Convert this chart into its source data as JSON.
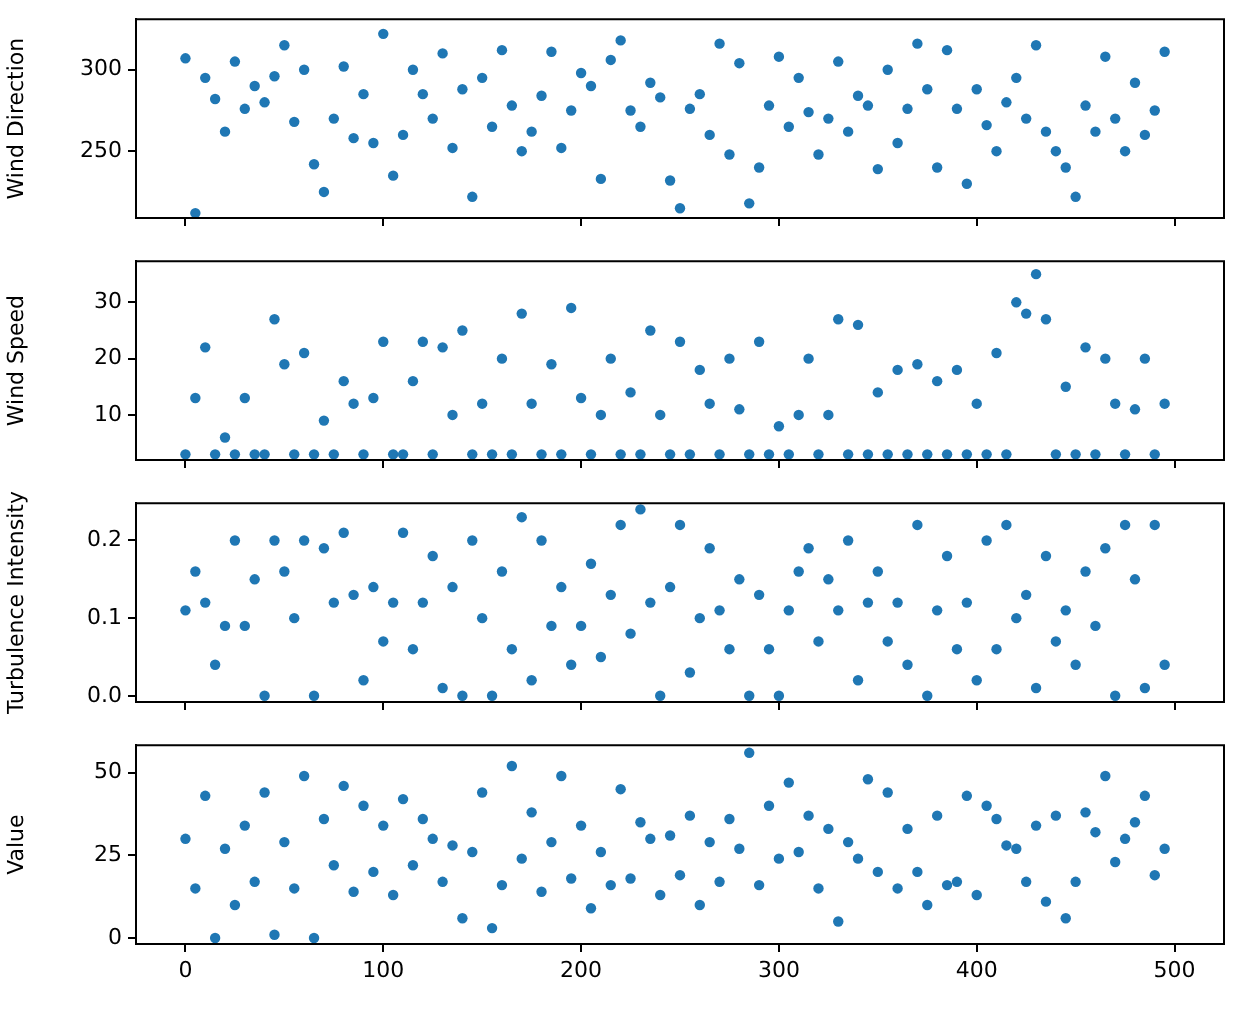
{
  "chart_data": [
    {
      "type": "scatter",
      "ylabel": "Wind Direction",
      "color": "#1f77b4",
      "marker": "circle",
      "grid": false,
      "tick_labels": "y",
      "xlim": [
        -25,
        525
      ],
      "xticks": [
        0,
        100,
        200,
        300,
        400,
        500
      ],
      "ylim": [
        209,
        331
      ],
      "yticks": [
        250,
        300
      ],
      "x": [
        0,
        5,
        10,
        15,
        20,
        25,
        30,
        35,
        40,
        45,
        50,
        55,
        60,
        65,
        70,
        75,
        80,
        85,
        90,
        95,
        100,
        105,
        110,
        115,
        120,
        125,
        130,
        135,
        140,
        145,
        150,
        155,
        160,
        165,
        170,
        175,
        180,
        185,
        190,
        195,
        200,
        205,
        210,
        215,
        220,
        225,
        230,
        235,
        240,
        245,
        250,
        255,
        260,
        265,
        270,
        275,
        280,
        285,
        290,
        295,
        300,
        305,
        310,
        315,
        320,
        325,
        330,
        335,
        340,
        345,
        350,
        355,
        360,
        365,
        370,
        375,
        380,
        385,
        390,
        395,
        400,
        405,
        410,
        415,
        420,
        425,
        430,
        435,
        440,
        445,
        450,
        455,
        460,
        465,
        470,
        475,
        480,
        485,
        490,
        495
      ],
      "values": [
        307,
        212,
        295,
        282,
        262,
        305,
        276,
        290,
        280,
        296,
        315,
        268,
        300,
        242,
        225,
        270,
        302,
        258,
        285,
        255,
        322,
        235,
        260,
        300,
        285,
        270,
        310,
        252,
        288,
        222,
        295,
        265,
        312,
        278,
        250,
        262,
        284,
        311,
        252,
        275,
        298,
        290,
        233,
        306,
        318,
        275,
        265,
        292,
        283,
        232,
        215,
        276,
        285,
        260,
        316,
        248,
        304,
        218,
        240,
        278,
        308,
        265,
        295,
        274,
        248,
        270,
        305,
        262,
        284,
        278,
        239,
        300,
        255,
        276,
        316,
        288,
        240,
        312,
        276,
        230,
        288,
        266,
        250,
        280,
        295,
        270,
        315,
        262,
        250,
        240,
        222,
        278,
        262,
        308,
        270,
        250,
        292,
        260,
        275,
        311
      ]
    },
    {
      "type": "scatter",
      "ylabel": "Wind Speed",
      "color": "#1f77b4",
      "marker": "circle",
      "grid": false,
      "tick_labels": "y",
      "xlim": [
        -25,
        525
      ],
      "xticks": [
        0,
        100,
        200,
        300,
        400,
        500
      ],
      "ylim": [
        2,
        37.3
      ],
      "yticks": [
        10,
        20,
        30
      ],
      "x": [
        0,
        5,
        10,
        15,
        20,
        25,
        30,
        35,
        40,
        45,
        50,
        55,
        60,
        65,
        70,
        75,
        80,
        85,
        90,
        95,
        100,
        105,
        110,
        115,
        120,
        125,
        130,
        135,
        140,
        145,
        150,
        155,
        160,
        165,
        170,
        175,
        180,
        185,
        190,
        195,
        200,
        205,
        210,
        215,
        220,
        225,
        230,
        235,
        240,
        245,
        250,
        255,
        260,
        265,
        270,
        275,
        280,
        285,
        290,
        295,
        300,
        305,
        310,
        315,
        320,
        325,
        330,
        335,
        340,
        345,
        350,
        355,
        360,
        365,
        370,
        375,
        380,
        385,
        390,
        395,
        400,
        405,
        410,
        415,
        420,
        425,
        430,
        435,
        440,
        445,
        450,
        455,
        460,
        465,
        470,
        475,
        480,
        485,
        490,
        495
      ],
      "values": [
        3,
        13,
        22,
        3,
        6,
        3,
        13,
        3,
        3,
        27,
        19,
        3,
        21,
        3,
        9,
        3,
        16,
        12,
        3,
        13,
        23,
        3,
        3,
        16,
        23,
        3,
        22,
        10,
        25,
        3,
        12,
        3,
        20,
        3,
        28,
        12,
        3,
        19,
        3,
        29,
        13,
        3,
        10,
        20,
        3,
        14,
        3,
        25,
        10,
        3,
        23,
        3,
        18,
        12,
        3,
        20,
        11,
        3,
        23,
        3,
        8,
        3,
        10,
        20,
        3,
        10,
        27,
        3,
        26,
        3,
        14,
        3,
        18,
        3,
        19,
        3,
        16,
        3,
        18,
        3,
        12,
        3,
        21,
        3,
        30,
        28,
        35,
        27,
        3,
        15,
        3,
        22,
        3,
        20,
        12,
        3,
        11,
        20,
        3,
        12
      ]
    },
    {
      "type": "scatter",
      "ylabel": "Turbulence Intensity",
      "color": "#1f77b4",
      "marker": "circle",
      "grid": false,
      "tick_labels": "y",
      "xlim": [
        -25,
        525
      ],
      "xticks": [
        0,
        100,
        200,
        300,
        400,
        500
      ],
      "ylim": [
        -0.008,
        0.248
      ],
      "yticks": [
        {
          "value": 0,
          "label": "0.0"
        },
        0.1,
        0.2
      ],
      "x": [
        0,
        5,
        10,
        15,
        20,
        25,
        30,
        35,
        40,
        45,
        50,
        55,
        60,
        65,
        70,
        75,
        80,
        85,
        90,
        95,
        100,
        105,
        110,
        115,
        120,
        125,
        130,
        135,
        140,
        145,
        150,
        155,
        160,
        165,
        170,
        175,
        180,
        185,
        190,
        195,
        200,
        205,
        210,
        215,
        220,
        225,
        230,
        235,
        240,
        245,
        250,
        255,
        260,
        265,
        270,
        275,
        280,
        285,
        290,
        295,
        300,
        305,
        310,
        315,
        320,
        325,
        330,
        335,
        340,
        345,
        350,
        355,
        360,
        365,
        370,
        375,
        380,
        385,
        390,
        395,
        400,
        405,
        410,
        415,
        420,
        425,
        430,
        435,
        440,
        445,
        450,
        455,
        460,
        465,
        470,
        475,
        480,
        485,
        490,
        495
      ],
      "values": [
        0.11,
        0.16,
        0.12,
        0.04,
        0.09,
        0.2,
        0.09,
        0.15,
        0.0,
        0.2,
        0.16,
        0.1,
        0.2,
        0.0,
        0.19,
        0.12,
        0.21,
        0.13,
        0.02,
        0.14,
        0.07,
        0.12,
        0.21,
        0.06,
        0.12,
        0.18,
        0.01,
        0.14,
        0.0,
        0.2,
        0.1,
        0.0,
        0.16,
        0.06,
        0.23,
        0.02,
        0.2,
        0.09,
        0.14,
        0.04,
        0.09,
        0.17,
        0.05,
        0.13,
        0.22,
        0.08,
        0.24,
        0.12,
        0.0,
        0.14,
        0.22,
        0.03,
        0.1,
        0.19,
        0.11,
        0.06,
        0.15,
        0.0,
        0.13,
        0.06,
        0.0,
        0.11,
        0.16,
        0.19,
        0.07,
        0.15,
        0.11,
        0.2,
        0.02,
        0.12,
        0.16,
        0.07,
        0.12,
        0.04,
        0.22,
        0.0,
        0.11,
        0.18,
        0.06,
        0.12,
        0.02,
        0.2,
        0.06,
        0.22,
        0.1,
        0.13,
        0.01,
        0.18,
        0.07,
        0.11,
        0.04,
        0.16,
        0.09,
        0.19,
        0.0,
        0.22,
        0.15,
        0.01,
        0.22,
        0.04
      ]
    },
    {
      "type": "scatter",
      "ylabel": "Value",
      "color": "#1f77b4",
      "marker": "circle",
      "grid": false,
      "xlim": [
        -25,
        525
      ],
      "xticks": [
        0,
        100,
        200,
        300,
        400,
        500
      ],
      "ylim": [
        -1.8,
        58.3
      ],
      "yticks": [
        0,
        25,
        50
      ],
      "x": [
        0,
        5,
        10,
        15,
        20,
        25,
        30,
        35,
        40,
        45,
        50,
        55,
        60,
        65,
        70,
        75,
        80,
        85,
        90,
        95,
        100,
        105,
        110,
        115,
        120,
        125,
        130,
        135,
        140,
        145,
        150,
        155,
        160,
        165,
        170,
        175,
        180,
        185,
        190,
        195,
        200,
        205,
        210,
        215,
        220,
        225,
        230,
        235,
        240,
        245,
        250,
        255,
        260,
        265,
        270,
        275,
        280,
        285,
        290,
        295,
        300,
        305,
        310,
        315,
        320,
        325,
        330,
        335,
        340,
        345,
        350,
        355,
        360,
        365,
        370,
        375,
        380,
        385,
        390,
        395,
        400,
        405,
        410,
        415,
        420,
        425,
        430,
        435,
        440,
        445,
        450,
        455,
        460,
        465,
        470,
        475,
        480,
        485,
        490,
        495
      ],
      "values": [
        30,
        15,
        43,
        0,
        27,
        10,
        34,
        17,
        44,
        1,
        29,
        15,
        49,
        0,
        36,
        22,
        46,
        14,
        40,
        20,
        34,
        13,
        42,
        22,
        36,
        30,
        17,
        28,
        6,
        26,
        44,
        3,
        16,
        52,
        24,
        38,
        14,
        29,
        49,
        18,
        34,
        9,
        26,
        16,
        45,
        18,
        35,
        30,
        13,
        31,
        19,
        37,
        10,
        29,
        17,
        36,
        27,
        56,
        16,
        40,
        24,
        47,
        26,
        37,
        15,
        33,
        5,
        29,
        24,
        48,
        20,
        44,
        15,
        33,
        20,
        10,
        37,
        16,
        17,
        43,
        13,
        40,
        36,
        28,
        27,
        17,
        34,
        11,
        37,
        6,
        17,
        38,
        32,
        49,
        23,
        30,
        35,
        43,
        19,
        27
      ]
    }
  ]
}
